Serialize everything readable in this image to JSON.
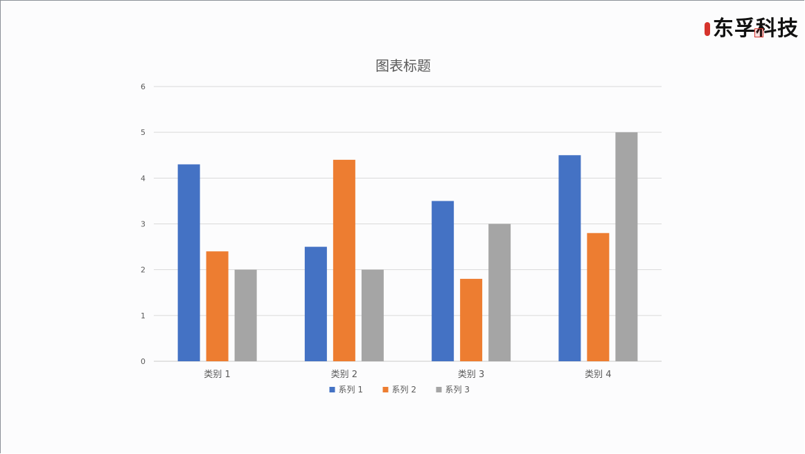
{
  "logo": {
    "text": "东孚科技"
  },
  "chart_data": {
    "type": "bar",
    "title": "图表标题",
    "xlabel": "",
    "ylabel": "",
    "categories": [
      "类别 1",
      "类别 2",
      "类别 3",
      "类别 4"
    ],
    "series": [
      {
        "name": "系列 1",
        "color": "#4472c4",
        "values": [
          4.3,
          2.5,
          3.5,
          4.5
        ]
      },
      {
        "name": "系列 2",
        "color": "#ed7d31",
        "values": [
          2.4,
          4.4,
          1.8,
          2.8
        ]
      },
      {
        "name": "系列 3",
        "color": "#a5a5a5",
        "values": [
          2,
          2,
          3,
          5
        ]
      }
    ],
    "ylim": [
      0,
      6
    ],
    "yticks": [
      "0",
      "1",
      "2",
      "3",
      "4",
      "5",
      "6"
    ],
    "grid": true,
    "legend": "bottom"
  }
}
